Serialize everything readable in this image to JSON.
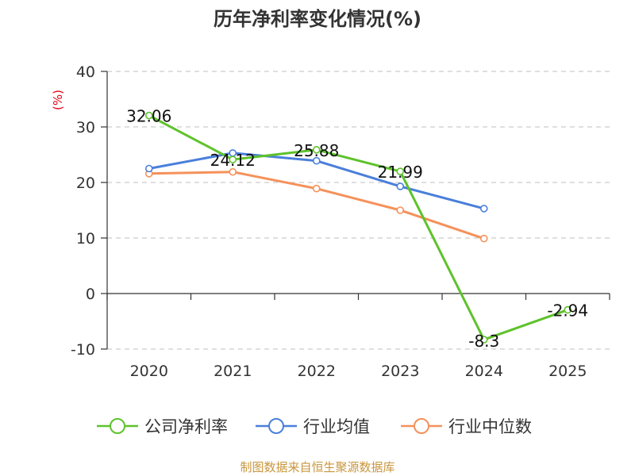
{
  "chart_data": {
    "type": "line",
    "title": "历年净利率变化情况(%)",
    "ylabel": "(%)",
    "categories": [
      "2020",
      "2021",
      "2022",
      "2023",
      "2024",
      "2025"
    ],
    "ylim": [
      -10,
      40
    ],
    "yticks": [
      40,
      30,
      20,
      10,
      0,
      -10
    ],
    "grid": true,
    "legend_position": "bottom",
    "series": [
      {
        "name": "公司净利率",
        "color": "#5ec22c",
        "values": [
          32.06,
          24.12,
          25.88,
          21.99,
          -8.3,
          -2.94
        ],
        "labels": [
          "32.06",
          "24.12",
          "25.88",
          "21.99",
          "-8.3",
          "-2.94"
        ]
      },
      {
        "name": "行业均值",
        "color": "#4a7fdb",
        "values": [
          22.5,
          25.3,
          23.9,
          19.3,
          15.3,
          null
        ]
      },
      {
        "name": "行业中位数",
        "color": "#f5915a",
        "values": [
          21.6,
          21.9,
          18.9,
          15.0,
          9.9,
          null
        ]
      }
    ]
  },
  "footer": {
    "source": "制图数据来自恒生聚源数据库"
  }
}
